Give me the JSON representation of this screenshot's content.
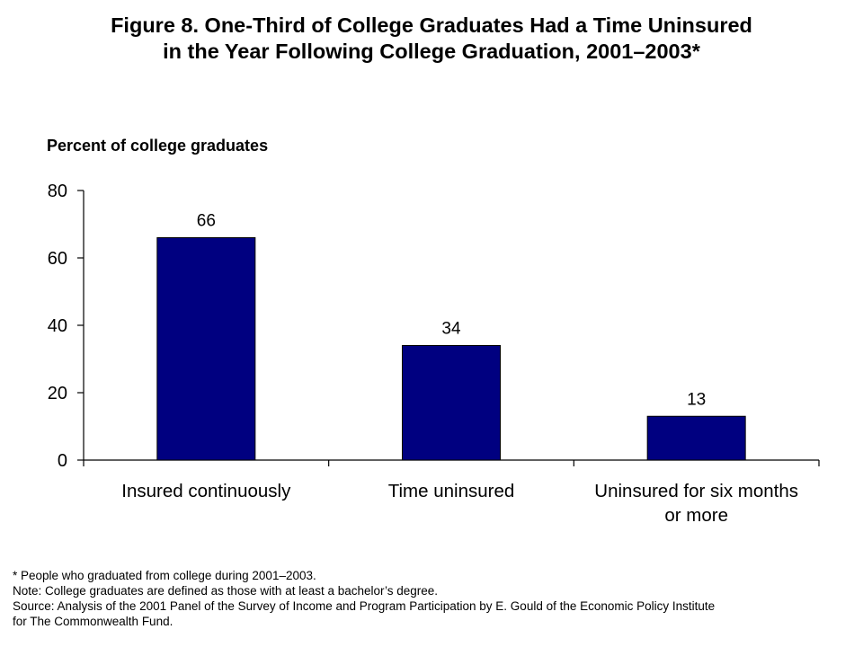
{
  "title": {
    "line1": "Figure 8. One-Third of College Graduates Had a Time Uninsured",
    "line2": "in the Year Following College Graduation, 2001–2003*"
  },
  "chart_data": {
    "type": "bar",
    "ylabel": "Percent of college graduates",
    "xlabel": "",
    "ylim": [
      0,
      80
    ],
    "yticks": [
      0,
      20,
      40,
      60,
      80
    ],
    "categories": [
      [
        "Insured continuously"
      ],
      [
        "Time uninsured"
      ],
      [
        "Uninsured for six months",
        "or more"
      ]
    ],
    "values": [
      66,
      34,
      13
    ],
    "data_labels": [
      "66",
      "34",
      "13"
    ],
    "bar_color": "#000080",
    "grid": false,
    "legend": "none"
  },
  "notes": {
    "footnote": "* People who graduated from college during 2001–2003.",
    "note": "Note: College graduates are defined as those with at least a bachelor’s degree.",
    "source_line1": "Source: Analysis of the 2001 Panel of the Survey of Income and Program Participation by E. Gould of the Economic Policy Institute",
    "source_line2": "for The Commonwealth Fund."
  }
}
